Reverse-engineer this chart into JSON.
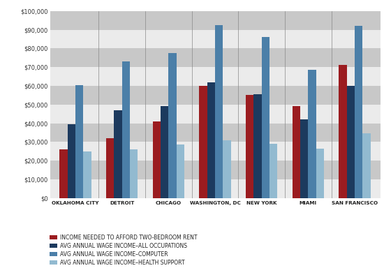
{
  "cities": [
    "OKLAHOMA CITY",
    "DETROIT",
    "CHICAGO",
    "WASHINGTON, DC",
    "NEW YORK",
    "MIAMI",
    "SAN FRANCISCO"
  ],
  "series": {
    "income_needed": [
      26000,
      32000,
      41000,
      60000,
      55000,
      49000,
      71000
    ],
    "all_occupations": [
      39500,
      47000,
      49000,
      62000,
      55500,
      42000,
      60000
    ],
    "computer": [
      60500,
      73000,
      77500,
      92500,
      86000,
      68500,
      92000
    ],
    "health_support": [
      25000,
      26000,
      28500,
      31000,
      29000,
      26500,
      34500
    ]
  },
  "colors": {
    "income_needed": "#9B1C20",
    "all_occupations": "#1C3A5E",
    "computer": "#4B7FA8",
    "health_support": "#92BAD0"
  },
  "legend_labels": [
    "INCOME NEEDED TO AFFORD TWO-BEDROOM RENT",
    "AVG ANNUAL WAGE INCOME–ALL OCCUPATIONS",
    "AVG ANNUAL WAGE INCOME–COMPUTER",
    "AVG ANNUAL WAGE INCOME–HEALTH SUPPORT"
  ],
  "ylim": [
    0,
    100000
  ],
  "yticks": [
    0,
    10000,
    20000,
    30000,
    40000,
    50000,
    60000,
    70000,
    80000,
    90000,
    100000
  ],
  "ytick_labels": [
    "$0",
    "$10,000",
    "$20,000",
    "$30,000",
    "$40,000",
    "$50,000",
    "$60,000",
    "$70,000",
    "$80,000",
    "$90,000",
    "$100,000"
  ],
  "background_color": "#FFFFFF",
  "plot_bg_color": "#D8D8D8",
  "stripe_light": "#EBEBEB",
  "stripe_dark": "#C8C8C8",
  "bar_width": 0.17
}
